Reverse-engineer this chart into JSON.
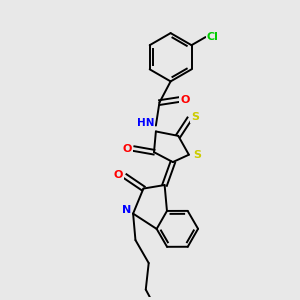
{
  "bg_color": "#e8e8e8",
  "bond_color": "#000000",
  "bond_width": 1.4,
  "atom_colors": {
    "O": "#ff0000",
    "N": "#0000ff",
    "S": "#cccc00",
    "Cl": "#00cc00",
    "H": "#008080",
    "C": "#000000"
  },
  "font_size": 7.5
}
